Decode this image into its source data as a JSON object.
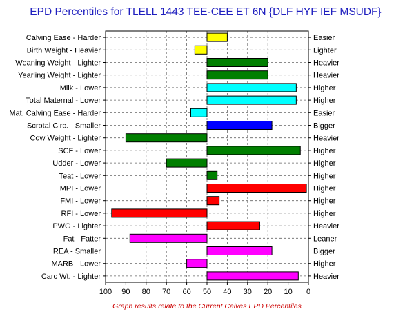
{
  "chart_data": {
    "type": "bar",
    "orientation": "horizontal-diverging",
    "title": "EPD Percentiles for TLELL 1443 TEE-CEE ET 6N {DLF HYF IEF MSUDF}",
    "footnote": "Graph results relate to the Current Calves EPD Percentiles",
    "xlim": [
      100,
      0
    ],
    "baseline": 50,
    "x_ticks": [
      "100",
      "90",
      "80",
      "70",
      "60",
      "50",
      "40",
      "30",
      "20",
      "10",
      "0"
    ],
    "grid": true,
    "traits": [
      {
        "left_label": "Calving Ease - Harder",
        "right_label": "Easier",
        "value": 40,
        "color": "#ffff00"
      },
      {
        "left_label": "Birth Weight - Heavier",
        "right_label": "Lighter",
        "value": 56,
        "color": "#ffff00"
      },
      {
        "left_label": "Weaning Weight - Lighter",
        "right_label": "Heavier",
        "value": 20,
        "color": "#007f00"
      },
      {
        "left_label": "Yearling Weight - Lighter",
        "right_label": "Heavier",
        "value": 20,
        "color": "#007f00"
      },
      {
        "left_label": "Milk - Lower",
        "right_label": "Higher",
        "value": 6,
        "color": "#00ffff"
      },
      {
        "left_label": "Total Maternal - Lower",
        "right_label": "Higher",
        "value": 6,
        "color": "#00ffff"
      },
      {
        "left_label": "Mat. Calving Ease - Harder",
        "right_label": "Easier",
        "value": 58,
        "color": "#00ffff"
      },
      {
        "left_label": "Scrotal Circ. - Smaller",
        "right_label": "Bigger",
        "value": 18,
        "color": "#0000ff"
      },
      {
        "left_label": "Cow Weight - Lighter",
        "right_label": "Heavier",
        "value": 90,
        "color": "#007f00"
      },
      {
        "left_label": "SCF - Lower",
        "right_label": "Higher",
        "value": 4,
        "color": "#007f00"
      },
      {
        "left_label": "Udder - Lower",
        "right_label": "Higher",
        "value": 70,
        "color": "#007f00"
      },
      {
        "left_label": "Teat - Lower",
        "right_label": "Higher",
        "value": 45,
        "color": "#007f00"
      },
      {
        "left_label": "MPI - Lower",
        "right_label": "Higher",
        "value": 1,
        "color": "#ff0000"
      },
      {
        "left_label": "FMI - Lower",
        "right_label": "Higher",
        "value": 44,
        "color": "#ff0000"
      },
      {
        "left_label": "RFI - Lower",
        "right_label": "Higher",
        "value": 97,
        "color": "#ff0000"
      },
      {
        "left_label": "PWG - Lighter",
        "right_label": "Heavier",
        "value": 24,
        "color": "#ff0000"
      },
      {
        "left_label": "Fat - Fatter",
        "right_label": "Leaner",
        "value": 88,
        "color": "#ff00ff"
      },
      {
        "left_label": "REA - Smaller",
        "right_label": "Bigger",
        "value": 18,
        "color": "#ff00ff"
      },
      {
        "left_label": "MARB - Lower",
        "right_label": "Higher",
        "value": 60,
        "color": "#ff00ff"
      },
      {
        "left_label": "Carc Wt. - Lighter",
        "right_label": "Heavier",
        "value": 5,
        "color": "#ff00ff"
      }
    ]
  }
}
